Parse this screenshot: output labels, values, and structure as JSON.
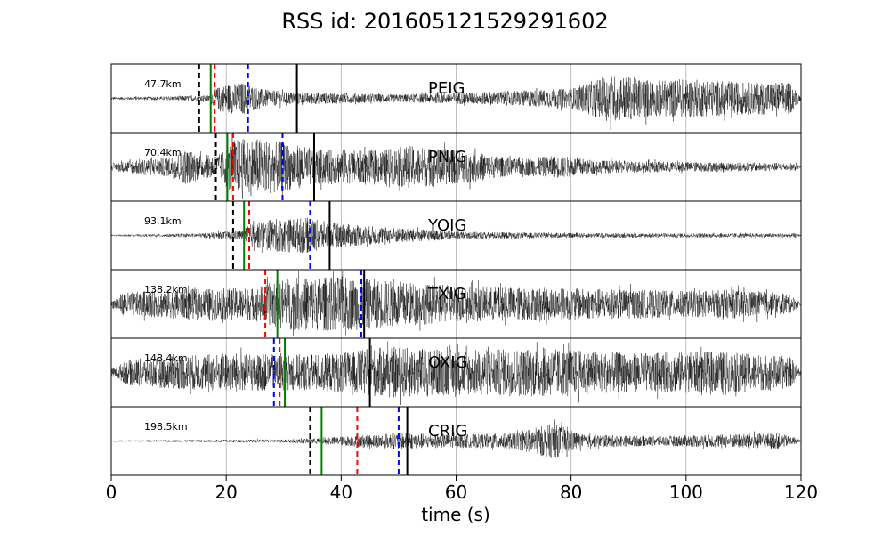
{
  "chart_data": {
    "type": "line",
    "title": "RSS id: 201605121529291602",
    "xlabel": "time (s)",
    "ylabel": "",
    "xlim": [
      0,
      120
    ],
    "xticks": [
      0,
      20,
      40,
      60,
      80,
      100,
      120
    ],
    "xtick_labels": [
      "0",
      "20",
      "40",
      "60",
      "80",
      "100",
      "120"
    ],
    "grid": "vertical",
    "waveform_color": "#000000",
    "marker_colors": {
      "black": "#000000",
      "green": "#008000",
      "red": "#ff0000",
      "blue": "#0000ff"
    },
    "panels": [
      {
        "station": "PEIG",
        "distance": "47.7km",
        "markers": [
          {
            "color": "black",
            "style": "dashed",
            "t": 15.3
          },
          {
            "color": "green",
            "style": "solid",
            "t": 17.3
          },
          {
            "color": "red",
            "style": "dashed",
            "t": 18.0
          },
          {
            "color": "blue",
            "style": "dashed",
            "t": 23.8
          },
          {
            "color": "black",
            "style": "solid",
            "t": 32.3
          }
        ],
        "envelope": [
          [
            0,
            0.04
          ],
          [
            10,
            0.06
          ],
          [
            17,
            0.1
          ],
          [
            18,
            0.3
          ],
          [
            20,
            0.45
          ],
          [
            23,
            0.5
          ],
          [
            26,
            0.3
          ],
          [
            30,
            0.2
          ],
          [
            40,
            0.16
          ],
          [
            50,
            0.12
          ],
          [
            65,
            0.2
          ],
          [
            80,
            0.3
          ],
          [
            87,
            0.75
          ],
          [
            95,
            0.55
          ],
          [
            100,
            0.6
          ],
          [
            110,
            0.5
          ],
          [
            118,
            0.5
          ],
          [
            120,
            0.05
          ]
        ]
      },
      {
        "station": "PNIG",
        "distance": "70.4km",
        "markers": [
          {
            "color": "black",
            "style": "dashed",
            "t": 18.2
          },
          {
            "color": "green",
            "style": "solid",
            "t": 20.2
          },
          {
            "color": "red",
            "style": "dashed",
            "t": 21.2
          },
          {
            "color": "blue",
            "style": "dashed",
            "t": 29.8
          },
          {
            "color": "black",
            "style": "solid",
            "t": 35.3
          }
        ],
        "envelope": [
          [
            0,
            0.1
          ],
          [
            5,
            0.25
          ],
          [
            10,
            0.3
          ],
          [
            13,
            0.55
          ],
          [
            16,
            0.35
          ],
          [
            19,
            0.4
          ],
          [
            21,
            0.85
          ],
          [
            25,
            0.9
          ],
          [
            30,
            0.75
          ],
          [
            36,
            0.55
          ],
          [
            45,
            0.5
          ],
          [
            52,
            0.65
          ],
          [
            62,
            0.5
          ],
          [
            70,
            0.25
          ],
          [
            78,
            0.35
          ],
          [
            85,
            0.2
          ],
          [
            100,
            0.15
          ],
          [
            119,
            0.12
          ],
          [
            120,
            0.02
          ]
        ]
      },
      {
        "station": "YOIG",
        "distance": "93.1km",
        "markers": [
          {
            "color": "black",
            "style": "dashed",
            "t": 21.2
          },
          {
            "color": "green",
            "style": "solid",
            "t": 23.1
          },
          {
            "color": "red",
            "style": "dashed",
            "t": 24.0
          },
          {
            "color": "blue",
            "style": "dashed",
            "t": 34.6
          },
          {
            "color": "black",
            "style": "solid",
            "t": 38.0
          }
        ],
        "envelope": [
          [
            0,
            0.02
          ],
          [
            15,
            0.06
          ],
          [
            23,
            0.15
          ],
          [
            24,
            0.35
          ],
          [
            28,
            0.5
          ],
          [
            34,
            0.55
          ],
          [
            38,
            0.4
          ],
          [
            44,
            0.3
          ],
          [
            60,
            0.12
          ],
          [
            80,
            0.07
          ],
          [
            119,
            0.06
          ],
          [
            120,
            0.02
          ]
        ]
      },
      {
        "station": "TXIG",
        "distance": "138.2km",
        "markers": [
          {
            "color": "red",
            "style": "dashed",
            "t": 26.8
          },
          {
            "color": "green",
            "style": "solid",
            "t": 28.9
          },
          {
            "color": "blue",
            "style": "dashed",
            "t": 43.5
          },
          {
            "color": "black",
            "style": "solid",
            "t": 44.0
          }
        ],
        "envelope": [
          [
            0,
            0.1
          ],
          [
            2,
            0.35
          ],
          [
            10,
            0.45
          ],
          [
            25,
            0.5
          ],
          [
            30,
            0.8
          ],
          [
            40,
            0.85
          ],
          [
            50,
            0.7
          ],
          [
            60,
            0.55
          ],
          [
            75,
            0.5
          ],
          [
            90,
            0.45
          ],
          [
            100,
            0.4
          ],
          [
            110,
            0.45
          ],
          [
            118,
            0.3
          ],
          [
            120,
            0.05
          ]
        ]
      },
      {
        "station": "OXIG",
        "distance": "148.4km",
        "markers": [
          {
            "color": "blue",
            "style": "dashed",
            "t": 28.3
          },
          {
            "color": "red",
            "style": "dashed",
            "t": 29.3
          },
          {
            "color": "green",
            "style": "solid",
            "t": 30.2
          },
          {
            "color": "black",
            "style": "solid",
            "t": 45.0
          }
        ],
        "envelope": [
          [
            0,
            0.1
          ],
          [
            3,
            0.4
          ],
          [
            10,
            0.5
          ],
          [
            20,
            0.6
          ],
          [
            30,
            0.55
          ],
          [
            40,
            0.6
          ],
          [
            48,
            0.8
          ],
          [
            60,
            0.7
          ],
          [
            75,
            0.75
          ],
          [
            90,
            0.6
          ],
          [
            105,
            0.65
          ],
          [
            118,
            0.5
          ],
          [
            120,
            0.05
          ]
        ]
      },
      {
        "station": "CRIG",
        "distance": "198.5km",
        "markers": [
          {
            "color": "black",
            "style": "dashed",
            "t": 34.6
          },
          {
            "color": "green",
            "style": "solid",
            "t": 36.6
          },
          {
            "color": "red",
            "style": "dashed",
            "t": 42.8
          },
          {
            "color": "blue",
            "style": "dashed",
            "t": 50.0
          },
          {
            "color": "black",
            "style": "solid",
            "t": 51.5
          }
        ],
        "envelope": [
          [
            0,
            0.02
          ],
          [
            30,
            0.05
          ],
          [
            37,
            0.1
          ],
          [
            45,
            0.2
          ],
          [
            50,
            0.25
          ],
          [
            60,
            0.2
          ],
          [
            70,
            0.25
          ],
          [
            77,
            0.55
          ],
          [
            82,
            0.2
          ],
          [
            95,
            0.15
          ],
          [
            116,
            0.25
          ],
          [
            119,
            0.1
          ],
          [
            120,
            0.02
          ]
        ]
      }
    ]
  }
}
